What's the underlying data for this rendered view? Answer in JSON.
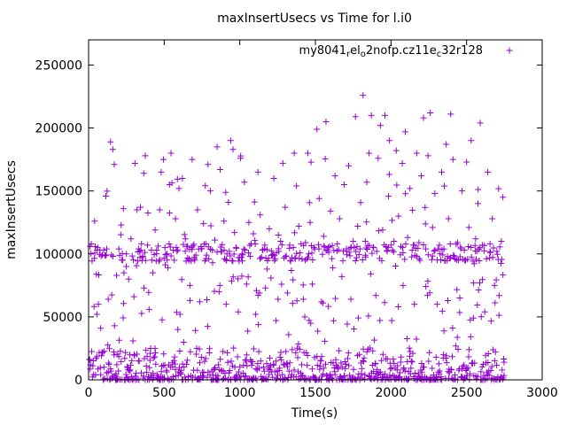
{
  "chart_data": {
    "type": "scatter",
    "title": "maxInsertUsecs vs Time for l.i0",
    "xlabel": "Time(s)",
    "ylabel": "maxInsertUsecs",
    "xlim": [
      0,
      3000
    ],
    "ylim": [
      0,
      270000
    ],
    "xticks": [
      0,
      500,
      1000,
      1500,
      2000,
      2500,
      3000
    ],
    "yticks": [
      0,
      50000,
      100000,
      150000,
      200000,
      250000
    ],
    "xtick_labels": [
      "0",
      "500",
      "1000",
      "1500",
      "2000",
      "2500",
      "3000"
    ],
    "ytick_labels": [
      "0",
      "50000",
      "100000",
      "150000",
      "200000",
      "250000"
    ],
    "grid": false,
    "legend_position": "top-right",
    "marker": "plus",
    "series": [
      {
        "name": "my8041_rel_o2nofp.cz11e_c32r128",
        "legend_parts": [
          {
            "text": "my8041",
            "sub": false
          },
          {
            "text": "r",
            "sub": true
          },
          {
            "text": "el",
            "sub": false
          },
          {
            "text": "o",
            "sub": true
          },
          {
            "text": "2nofp.cz11e",
            "sub": false
          },
          {
            "text": "c",
            "sub": true
          },
          {
            "text": "32r128",
            "sub": false
          }
        ],
        "color": "#9400d3",
        "x_range": [
          5,
          2750
        ],
        "point_count": 2750,
        "points": [
          [
            10,
            106000
          ],
          [
            40,
            126000
          ],
          [
            55,
            52000
          ],
          [
            80,
            41000
          ],
          [
            100,
            103000
          ],
          [
            120,
            104000
          ],
          [
            130,
            64000
          ],
          [
            145,
            189000
          ],
          [
            160,
            183000
          ],
          [
            170,
            171000
          ],
          [
            185,
            83000
          ],
          [
            200,
            104000
          ],
          [
            215,
            123000
          ],
          [
            230,
            136000
          ],
          [
            250,
            100000
          ],
          [
            265,
            80000
          ],
          [
            280,
            112000
          ],
          [
            300,
            66000
          ],
          [
            320,
            135000
          ],
          [
            330,
            104000
          ],
          [
            350,
            108000
          ],
          [
            365,
            164000
          ],
          [
            375,
            178000
          ],
          [
            390,
            107000
          ],
          [
            400,
            56000
          ],
          [
            410,
            25000
          ],
          [
            425,
            85000
          ],
          [
            440,
            119000
          ],
          [
            450,
            103000
          ],
          [
            470,
            135000
          ],
          [
            480,
            165000
          ],
          [
            495,
            175000
          ],
          [
            505,
            105000
          ],
          [
            520,
            100000
          ],
          [
            535,
            155000
          ],
          [
            545,
            180000
          ],
          [
            560,
            103000
          ],
          [
            575,
            128000
          ],
          [
            590,
            40000
          ],
          [
            605,
            52000
          ],
          [
            620,
            160000
          ],
          [
            640,
            112000
          ],
          [
            655,
            106000
          ],
          [
            670,
            75000
          ],
          [
            685,
            175000
          ],
          [
            700,
            96000
          ],
          [
            720,
            135000
          ],
          [
            735,
            62000
          ],
          [
            745,
            104000
          ],
          [
            760,
            124000
          ],
          [
            775,
            108000
          ],
          [
            790,
            171000
          ],
          [
            805,
            150000
          ],
          [
            820,
            93000
          ],
          [
            835,
            111000
          ],
          [
            850,
            185000
          ],
          [
            870,
            167000
          ],
          [
            880,
            102000
          ],
          [
            895,
            126000
          ],
          [
            910,
            60000
          ],
          [
            925,
            141000
          ],
          [
            940,
            190000
          ],
          [
            955,
            183000
          ],
          [
            965,
            117000
          ],
          [
            975,
            105000
          ],
          [
            990,
            54000
          ],
          [
            1005,
            176000
          ],
          [
            1015,
            100000
          ],
          [
            1030,
            157000
          ],
          [
            1045,
            76000
          ],
          [
            1060,
            125000
          ],
          [
            1075,
            108000
          ],
          [
            1090,
            116000
          ],
          [
            1105,
            52000
          ],
          [
            1120,
            165000
          ],
          [
            1135,
            131000
          ],
          [
            1150,
            103000
          ],
          [
            1165,
            107000
          ],
          [
            1180,
            88000
          ],
          [
            1195,
            120000
          ],
          [
            1210,
            99000
          ],
          [
            1225,
            160000
          ],
          [
            1240,
            47000
          ],
          [
            1255,
            115000
          ],
          [
            1270,
            110000
          ],
          [
            1285,
            172000
          ],
          [
            1300,
            137000
          ],
          [
            1315,
            69000
          ],
          [
            1330,
            107000
          ],
          [
            1345,
            97000
          ],
          [
            1360,
            180000
          ],
          [
            1375,
            154000
          ],
          [
            1390,
            122000
          ],
          [
            1405,
            108000
          ],
          [
            1420,
            64000
          ],
          [
            1435,
            109000
          ],
          [
            1450,
            180000
          ],
          [
            1465,
            125000
          ],
          [
            1480,
            76000
          ],
          [
            1495,
            104000
          ],
          [
            1510,
            199000
          ],
          [
            1525,
            144000
          ],
          [
            1540,
            62000
          ],
          [
            1555,
            114000
          ],
          [
            1570,
            205000
          ],
          [
            1585,
            105000
          ],
          [
            1600,
            134000
          ],
          [
            1615,
            89000
          ],
          [
            1630,
            162000
          ],
          [
            1645,
            108000
          ],
          [
            1660,
            128000
          ],
          [
            1675,
            82000
          ],
          [
            1690,
            155000
          ],
          [
            1705,
            104000
          ],
          [
            1720,
            170000
          ],
          [
            1735,
            64000
          ],
          [
            1750,
            110000
          ],
          [
            1765,
            209000
          ],
          [
            1780,
            122000
          ],
          [
            1795,
            104000
          ],
          [
            1815,
            226000
          ],
          [
            1830,
            110000
          ],
          [
            1840,
            157000
          ],
          [
            1855,
            180000
          ],
          [
            1870,
            210000
          ],
          [
            1885,
            105000
          ],
          [
            1900,
            67000
          ],
          [
            1915,
            176000
          ],
          [
            1930,
            202000
          ],
          [
            1945,
            119000
          ],
          [
            1960,
            210000
          ],
          [
            1975,
            102000
          ],
          [
            1990,
            190000
          ],
          [
            2005,
            47000
          ],
          [
            2020,
            110000
          ],
          [
            2035,
            182000
          ],
          [
            2050,
            130000
          ],
          [
            2065,
            106000
          ],
          [
            2080,
            75000
          ],
          [
            2095,
            197000
          ],
          [
            2110,
            113000
          ],
          [
            2125,
            152000
          ],
          [
            2140,
            103000
          ],
          [
            2155,
            60000
          ],
          [
            2170,
            180000
          ],
          [
            2185,
            109000
          ],
          [
            2200,
            162000
          ],
          [
            2215,
            208000
          ],
          [
            2230,
            104000
          ],
          [
            2245,
            178000
          ],
          [
            2260,
            212000
          ],
          [
            2275,
            121000
          ],
          [
            2290,
            148000
          ],
          [
            2305,
            60000
          ],
          [
            2320,
            107000
          ],
          [
            2335,
            165000
          ],
          [
            2350,
            104000
          ],
          [
            2365,
            187000
          ],
          [
            2380,
            128000
          ],
          [
            2395,
            211000
          ],
          [
            2410,
            175000
          ],
          [
            2425,
            96000
          ],
          [
            2440,
            109000
          ],
          [
            2455,
            65000
          ],
          [
            2470,
            150000
          ],
          [
            2485,
            103000
          ],
          [
            2500,
            173000
          ],
          [
            2515,
            121000
          ],
          [
            2530,
            190000
          ],
          [
            2545,
            49000
          ],
          [
            2560,
            112000
          ],
          [
            2575,
            140000
          ],
          [
            2590,
            204000
          ],
          [
            2605,
            107000
          ],
          [
            2620,
            54000
          ],
          [
            2640,
            165000
          ],
          [
            2655,
            108000
          ],
          [
            2670,
            128000
          ],
          [
            2685,
            75000
          ],
          [
            2700,
            102000
          ],
          [
            2715,
            67000
          ],
          [
            2730,
            110000
          ],
          [
            2740,
            145000
          ],
          [
            2748,
            14000
          ]
        ]
      }
    ]
  }
}
